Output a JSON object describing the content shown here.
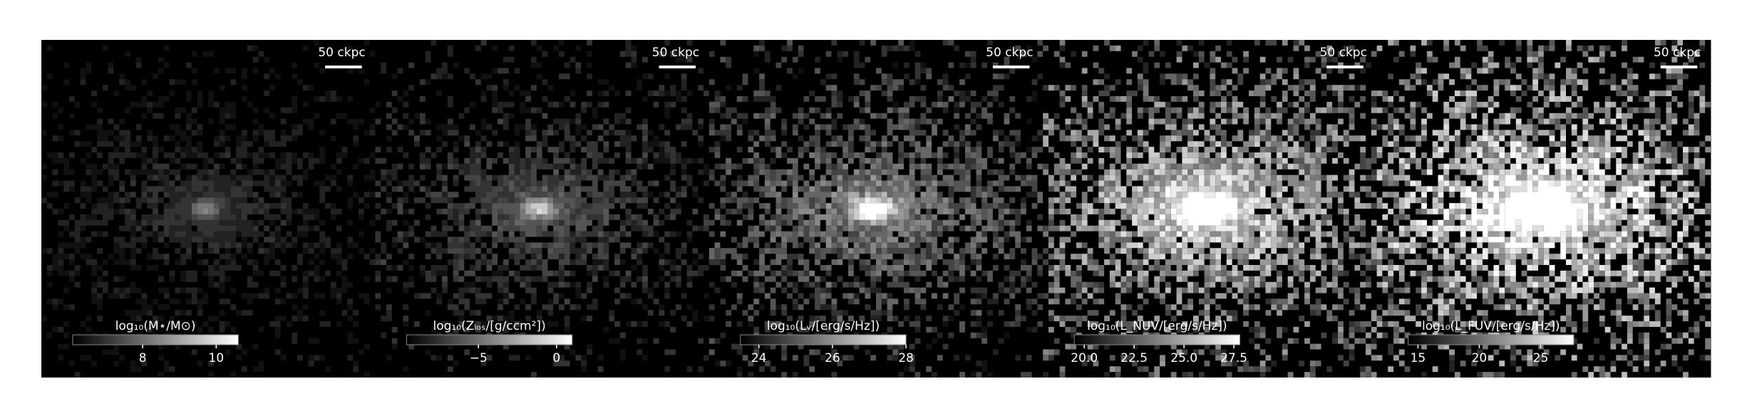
{
  "chart_data": [
    {
      "type": "image",
      "scalebar": "50 ckpc",
      "colorbar": {
        "label": "log₁₀(M⋆/M⊙)",
        "clim": [
          6.1,
          10.6
        ],
        "ticks": [
          8,
          10
        ]
      }
    },
    {
      "type": "image",
      "scalebar": "50 ckpc",
      "colorbar": {
        "label": "log₁₀(Zₗₒₛ/[g/ccm²])",
        "clim": [
          -9.6,
          1.0
        ],
        "ticks": [
          {
            "value": -5,
            "label": "−5"
          },
          0
        ]
      }
    },
    {
      "type": "image",
      "scalebar": "50 ckpc",
      "colorbar": {
        "label": "log₁₀(Lᵥ/[erg/s/Hz])",
        "clim": [
          23.5,
          28.0
        ],
        "ticks": [
          24,
          26,
          28
        ]
      }
    },
    {
      "type": "image",
      "scalebar": "50 ckpc",
      "colorbar": {
        "label": "log₁₀(L_NUV/[erg/s/Hz])",
        "clim": [
          19.5,
          27.8
        ],
        "ticks": [
          {
            "value": 20,
            "label": "20.0"
          },
          22.5,
          {
            "value": 25,
            "label": "25.0"
          },
          27.5
        ]
      }
    },
    {
      "type": "image",
      "scalebar": "50 ckpc",
      "colorbar": {
        "label": "log₁₀(L_FUV/[erg/s/Hz])",
        "clim": [
          14.2,
          27.7
        ],
        "ticks": [
          15,
          20,
          25
        ]
      }
    }
  ]
}
